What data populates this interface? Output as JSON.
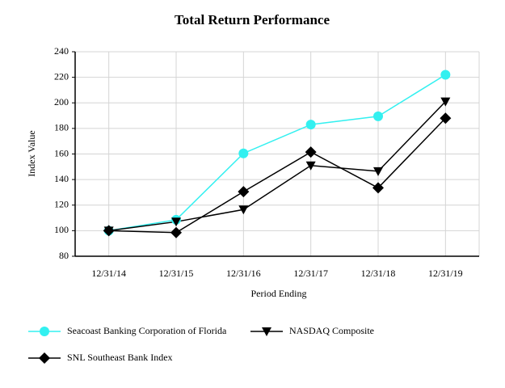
{
  "chart_data": {
    "type": "line",
    "title": "Total Return Performance",
    "x_label": "Period Ending",
    "y_label": "Index Value",
    "categories": [
      "12/31/14",
      "12/31/15",
      "12/31/16",
      "12/31/17",
      "12/31/18",
      "12/31/19"
    ],
    "series": [
      {
        "name": "Seacoast Banking Corporation of Florida",
        "color": "#33f0f0",
        "marker": "circle",
        "values": [
          100,
          108.5,
          160.5,
          183,
          189.5,
          222
        ]
      },
      {
        "name": "NASDAQ Composite",
        "color": "#000000",
        "marker": "triangle-down",
        "values": [
          100,
          107,
          116.5,
          151,
          146.5,
          201
        ]
      },
      {
        "name": "SNL Southeast Bank Index",
        "color": "#000000",
        "marker": "diamond",
        "values": [
          100,
          98.5,
          130.5,
          161.5,
          133.5,
          188
        ]
      }
    ],
    "ylim": [
      80,
      240
    ],
    "yticks": [
      80,
      100,
      120,
      140,
      160,
      180,
      200,
      220,
      240
    ],
    "grid": true,
    "legend": "bottom"
  }
}
